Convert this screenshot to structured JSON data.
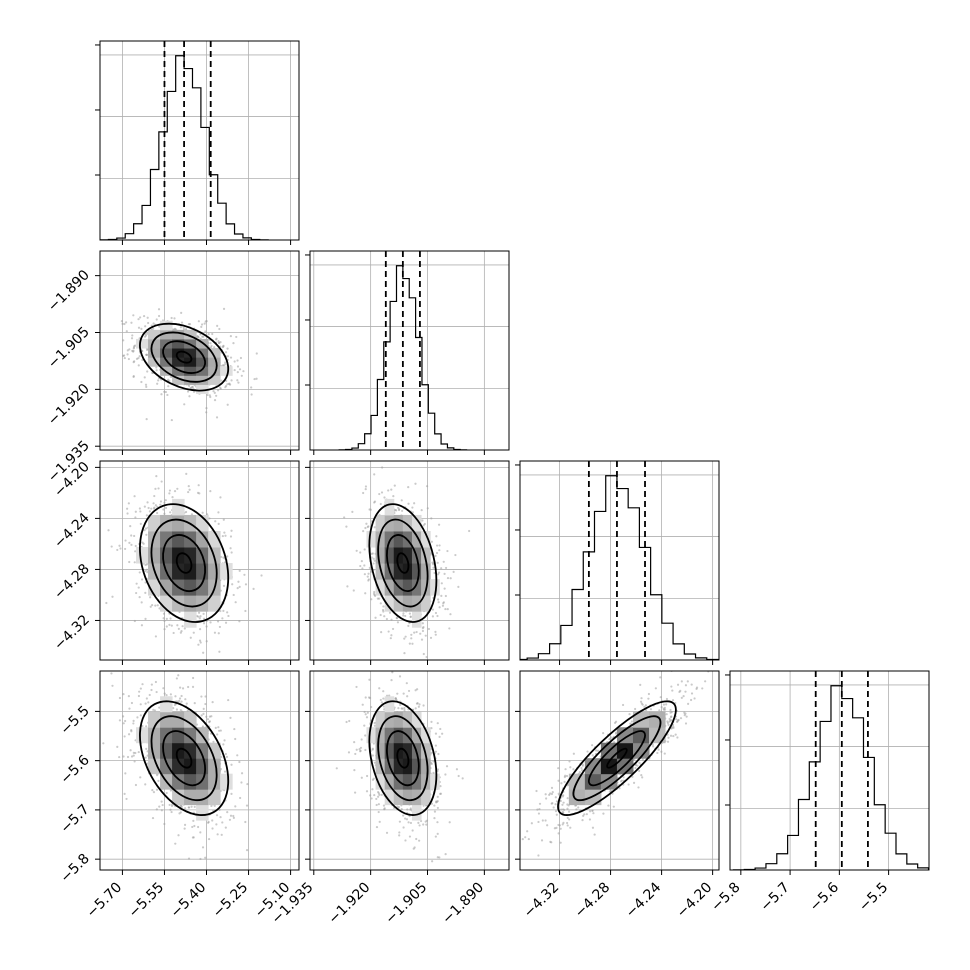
{
  "chart_data": {
    "type": "corner",
    "parameters": [
      {
        "id": "p1",
        "range": [
          -5.78,
          -5.07
        ],
        "ticks": [
          -5.7,
          -5.55,
          -5.4,
          -5.25,
          -5.1
        ],
        "tick_labels": [
          "−5.70",
          "−5.55",
          "−5.40",
          "−5.25",
          "−5.10"
        ],
        "mean": -5.48,
        "sd": 0.075,
        "quantiles": [
          -5.55,
          -5.48,
          -5.385
        ]
      },
      {
        "id": "p2",
        "range": [
          -1.936,
          -1.8835
        ],
        "ticks": [
          -1.935,
          -1.92,
          -1.905,
          -1.89
        ],
        "tick_labels": [
          "−1.935",
          "−1.920",
          "−1.905",
          "−1.890"
        ],
        "mean": -1.9115,
        "sd": 0.0042,
        "quantiles": [
          -1.916,
          -1.9115,
          -1.907
        ]
      },
      {
        "id": "p3",
        "range": [
          -4.351,
          -4.195
        ],
        "ticks": [
          -4.32,
          -4.28,
          -4.24,
          -4.2
        ],
        "tick_labels": [
          "−4.32",
          "−4.28",
          "−4.24",
          "−4.20"
        ],
        "mean": -4.275,
        "sd": 0.022,
        "quantiles": [
          -4.297,
          -4.275,
          -4.253
        ]
      },
      {
        "id": "p4",
        "range": [
          -5.822,
          -5.418
        ],
        "ticks": [
          -5.8,
          -5.7,
          -5.6,
          -5.5
        ],
        "tick_labels": [
          "−5.8",
          "−5.7",
          "−5.6",
          "−5.5"
        ],
        "mean": -5.595,
        "sd": 0.055,
        "quantiles": [
          -5.648,
          -5.595,
          -5.542
        ]
      }
    ],
    "correlations": {
      "1-0": -0.35,
      "2-0": -0.25,
      "2-1": -0.3,
      "3-0": -0.4,
      "3-1": -0.3,
      "3-2": 0.85
    },
    "histogram_bins": 20,
    "contour_levels": [
      0.5,
      1.0,
      1.5,
      2.0
    ],
    "grid": true,
    "colors": {
      "scatter": "#9e9e9e",
      "density_dark": "#000000",
      "density_light": "#ffffff",
      "lines": "#000000"
    }
  }
}
